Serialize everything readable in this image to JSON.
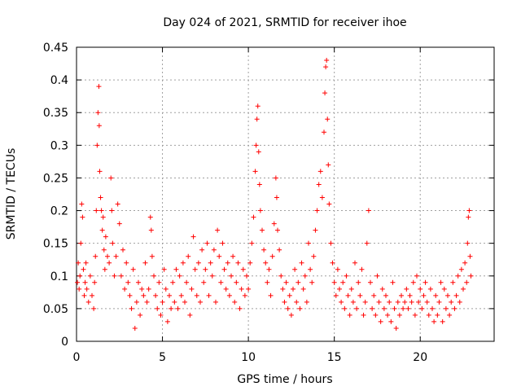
{
  "chart_data": {
    "type": "scatter",
    "title": "Day 024 of 2021, SRMTID for receiver ihoe",
    "xlabel": "GPS time / hours",
    "ylabel": "SRMTID / TECUs",
    "xlim": [
      0,
      24.3
    ],
    "ylim": [
      0,
      0.45
    ],
    "xticks": [
      0,
      5,
      10,
      15,
      20
    ],
    "xtick_labels": [
      "0",
      "5",
      "10",
      "15",
      "20"
    ],
    "yticks": [
      0,
      0.05,
      0.1,
      0.15,
      0.2,
      0.25,
      0.3,
      0.35,
      0.4,
      0.45
    ],
    "ytick_labels": [
      "0",
      "0.05",
      "0.1",
      "0.15",
      "0.2",
      "0.25",
      "0.3",
      "0.35",
      "0.4",
      "0.45"
    ],
    "grid": true,
    "marker": "+",
    "color": "#ff0000",
    "series": [
      {
        "name": "SRMTID",
        "points": [
          [
            0.05,
            0.09
          ],
          [
            0.1,
            0.12
          ],
          [
            0.15,
            0.08
          ],
          [
            0.2,
            0.1
          ],
          [
            0.25,
            0.15
          ],
          [
            0.3,
            0.21
          ],
          [
            0.35,
            0.19
          ],
          [
            0.4,
            0.11
          ],
          [
            0.45,
            0.07
          ],
          [
            0.5,
            0.09
          ],
          [
            0.55,
            0.12
          ],
          [
            0.6,
            0.08
          ],
          [
            0.7,
            0.06
          ],
          [
            0.8,
            0.1
          ],
          [
            0.9,
            0.07
          ],
          [
            1.0,
            0.05
          ],
          [
            1.05,
            0.09
          ],
          [
            1.1,
            0.13
          ],
          [
            1.15,
            0.2
          ],
          [
            1.2,
            0.3
          ],
          [
            1.25,
            0.35
          ],
          [
            1.3,
            0.39
          ],
          [
            1.32,
            0.33
          ],
          [
            1.35,
            0.26
          ],
          [
            1.4,
            0.22
          ],
          [
            1.45,
            0.2
          ],
          [
            1.5,
            0.17
          ],
          [
            1.55,
            0.19
          ],
          [
            1.6,
            0.14
          ],
          [
            1.65,
            0.11
          ],
          [
            1.7,
            0.16
          ],
          [
            1.8,
            0.13
          ],
          [
            1.9,
            0.12
          ],
          [
            2.0,
            0.25
          ],
          [
            2.05,
            0.2
          ],
          [
            2.1,
            0.15
          ],
          [
            2.2,
            0.1
          ],
          [
            2.3,
            0.13
          ],
          [
            2.4,
            0.21
          ],
          [
            2.5,
            0.18
          ],
          [
            2.6,
            0.1
          ],
          [
            2.7,
            0.14
          ],
          [
            2.8,
            0.08
          ],
          [
            2.9,
            0.12
          ],
          [
            3.0,
            0.09
          ],
          [
            3.1,
            0.07
          ],
          [
            3.2,
            0.05
          ],
          [
            3.3,
            0.11
          ],
          [
            3.4,
            0.02
          ],
          [
            3.5,
            0.06
          ],
          [
            3.6,
            0.09
          ],
          [
            3.7,
            0.04
          ],
          [
            3.8,
            0.08
          ],
          [
            3.9,
            0.07
          ],
          [
            4.0,
            0.12
          ],
          [
            4.1,
            0.06
          ],
          [
            4.2,
            0.08
          ],
          [
            4.3,
            0.19
          ],
          [
            4.35,
            0.17
          ],
          [
            4.4,
            0.13
          ],
          [
            4.5,
            0.1
          ],
          [
            4.6,
            0.07
          ],
          [
            4.7,
            0.05
          ],
          [
            4.8,
            0.09
          ],
          [
            4.9,
            0.04
          ],
          [
            5.0,
            0.06
          ],
          [
            5.1,
            0.11
          ],
          [
            5.2,
            0.08
          ],
          [
            5.3,
            0.03
          ],
          [
            5.4,
            0.07
          ],
          [
            5.5,
            0.05
          ],
          [
            5.6,
            0.09
          ],
          [
            5.7,
            0.06
          ],
          [
            5.8,
            0.11
          ],
          [
            5.9,
            0.05
          ],
          [
            6.0,
            0.1
          ],
          [
            6.1,
            0.07
          ],
          [
            6.2,
            0.12
          ],
          [
            6.3,
            0.06
          ],
          [
            6.4,
            0.09
          ],
          [
            6.5,
            0.13
          ],
          [
            6.6,
            0.04
          ],
          [
            6.7,
            0.08
          ],
          [
            6.8,
            0.16
          ],
          [
            6.9,
            0.11
          ],
          [
            7.0,
            0.07
          ],
          [
            7.1,
            0.12
          ],
          [
            7.2,
            0.06
          ],
          [
            7.3,
            0.14
          ],
          [
            7.4,
            0.09
          ],
          [
            7.5,
            0.11
          ],
          [
            7.6,
            0.15
          ],
          [
            7.7,
            0.07
          ],
          [
            7.8,
            0.12
          ],
          [
            7.9,
            0.1
          ],
          [
            8.0,
            0.14
          ],
          [
            8.1,
            0.06
          ],
          [
            8.2,
            0.17
          ],
          [
            8.3,
            0.13
          ],
          [
            8.4,
            0.09
          ],
          [
            8.5,
            0.15
          ],
          [
            8.6,
            0.11
          ],
          [
            8.7,
            0.08
          ],
          [
            8.8,
            0.12
          ],
          [
            8.9,
            0.07
          ],
          [
            9.0,
            0.1
          ],
          [
            9.1,
            0.13
          ],
          [
            9.2,
            0.06
          ],
          [
            9.3,
            0.09
          ],
          [
            9.4,
            0.12
          ],
          [
            9.5,
            0.05
          ],
          [
            9.6,
            0.08
          ],
          [
            9.7,
            0.11
          ],
          [
            9.8,
            0.07
          ],
          [
            9.9,
            0.1
          ],
          [
            10.0,
            0.08
          ],
          [
            10.1,
            0.12
          ],
          [
            10.2,
            0.15
          ],
          [
            10.3,
            0.19
          ],
          [
            10.4,
            0.26
          ],
          [
            10.45,
            0.3
          ],
          [
            10.5,
            0.34
          ],
          [
            10.55,
            0.36
          ],
          [
            10.6,
            0.29
          ],
          [
            10.65,
            0.24
          ],
          [
            10.7,
            0.2
          ],
          [
            10.8,
            0.17
          ],
          [
            10.9,
            0.14
          ],
          [
            11.0,
            0.12
          ],
          [
            11.1,
            0.09
          ],
          [
            11.2,
            0.11
          ],
          [
            11.3,
            0.07
          ],
          [
            11.4,
            0.13
          ],
          [
            11.5,
            0.18
          ],
          [
            11.6,
            0.25
          ],
          [
            11.65,
            0.22
          ],
          [
            11.7,
            0.17
          ],
          [
            11.8,
            0.14
          ],
          [
            11.9,
            0.1
          ],
          [
            12.0,
            0.08
          ],
          [
            12.1,
            0.06
          ],
          [
            12.2,
            0.09
          ],
          [
            12.3,
            0.05
          ],
          [
            12.4,
            0.07
          ],
          [
            12.5,
            0.04
          ],
          [
            12.6,
            0.08
          ],
          [
            12.7,
            0.11
          ],
          [
            12.8,
            0.06
          ],
          [
            12.9,
            0.09
          ],
          [
            13.0,
            0.05
          ],
          [
            13.1,
            0.12
          ],
          [
            13.2,
            0.08
          ],
          [
            13.3,
            0.1
          ],
          [
            13.4,
            0.06
          ],
          [
            13.5,
            0.15
          ],
          [
            13.6,
            0.11
          ],
          [
            13.7,
            0.09
          ],
          [
            13.8,
            0.13
          ],
          [
            13.9,
            0.17
          ],
          [
            14.0,
            0.2
          ],
          [
            14.1,
            0.24
          ],
          [
            14.2,
            0.26
          ],
          [
            14.3,
            0.22
          ],
          [
            14.4,
            0.32
          ],
          [
            14.45,
            0.38
          ],
          [
            14.5,
            0.42
          ],
          [
            14.55,
            0.43
          ],
          [
            14.6,
            0.34
          ],
          [
            14.65,
            0.27
          ],
          [
            14.7,
            0.21
          ],
          [
            14.8,
            0.15
          ],
          [
            14.9,
            0.12
          ],
          [
            15.0,
            0.09
          ],
          [
            15.1,
            0.07
          ],
          [
            15.2,
            0.11
          ],
          [
            15.3,
            0.08
          ],
          [
            15.4,
            0.06
          ],
          [
            15.5,
            0.09
          ],
          [
            15.6,
            0.05
          ],
          [
            15.7,
            0.1
          ],
          [
            15.8,
            0.07
          ],
          [
            15.9,
            0.04
          ],
          [
            16.0,
            0.08
          ],
          [
            16.1,
            0.06
          ],
          [
            16.2,
            0.12
          ],
          [
            16.3,
            0.05
          ],
          [
            16.4,
            0.09
          ],
          [
            16.5,
            0.07
          ],
          [
            16.6,
            0.11
          ],
          [
            16.7,
            0.04
          ],
          [
            16.8,
            0.06
          ],
          [
            16.9,
            0.15
          ],
          [
            17.0,
            0.2
          ],
          [
            17.1,
            0.09
          ],
          [
            17.2,
            0.05
          ],
          [
            17.3,
            0.07
          ],
          [
            17.4,
            0.04
          ],
          [
            17.5,
            0.1
          ],
          [
            17.6,
            0.06
          ],
          [
            17.7,
            0.03
          ],
          [
            17.8,
            0.08
          ],
          [
            17.9,
            0.05
          ],
          [
            18.0,
            0.07
          ],
          [
            18.1,
            0.04
          ],
          [
            18.2,
            0.06
          ],
          [
            18.3,
            0.03
          ],
          [
            18.4,
            0.09
          ],
          [
            18.5,
            0.05
          ],
          [
            18.6,
            0.02
          ],
          [
            18.7,
            0.06
          ],
          [
            18.8,
            0.04
          ],
          [
            18.9,
            0.07
          ],
          [
            19.0,
            0.05
          ],
          [
            19.1,
            0.06
          ],
          [
            19.2,
            0.08
          ],
          [
            19.3,
            0.05
          ],
          [
            19.4,
            0.07
          ],
          [
            19.5,
            0.06
          ],
          [
            19.6,
            0.09
          ],
          [
            19.7,
            0.04
          ],
          [
            19.8,
            0.1
          ],
          [
            19.9,
            0.06
          ],
          [
            20.0,
            0.08
          ],
          [
            20.1,
            0.05
          ],
          [
            20.2,
            0.07
          ],
          [
            20.3,
            0.09
          ],
          [
            20.4,
            0.06
          ],
          [
            20.5,
            0.04
          ],
          [
            20.6,
            0.08
          ],
          [
            20.7,
            0.05
          ],
          [
            20.8,
            0.03
          ],
          [
            20.9,
            0.07
          ],
          [
            21.0,
            0.04
          ],
          [
            21.1,
            0.06
          ],
          [
            21.2,
            0.09
          ],
          [
            21.3,
            0.03
          ],
          [
            21.4,
            0.08
          ],
          [
            21.5,
            0.05
          ],
          [
            21.6,
            0.07
          ],
          [
            21.7,
            0.04
          ],
          [
            21.8,
            0.06
          ],
          [
            21.9,
            0.09
          ],
          [
            22.0,
            0.05
          ],
          [
            22.1,
            0.07
          ],
          [
            22.2,
            0.1
          ],
          [
            22.3,
            0.06
          ],
          [
            22.4,
            0.11
          ],
          [
            22.5,
            0.08
          ],
          [
            22.6,
            0.12
          ],
          [
            22.7,
            0.09
          ],
          [
            22.75,
            0.15
          ],
          [
            22.8,
            0.19
          ],
          [
            22.85,
            0.2
          ],
          [
            22.9,
            0.13
          ],
          [
            22.95,
            0.1
          ]
        ]
      }
    ]
  }
}
